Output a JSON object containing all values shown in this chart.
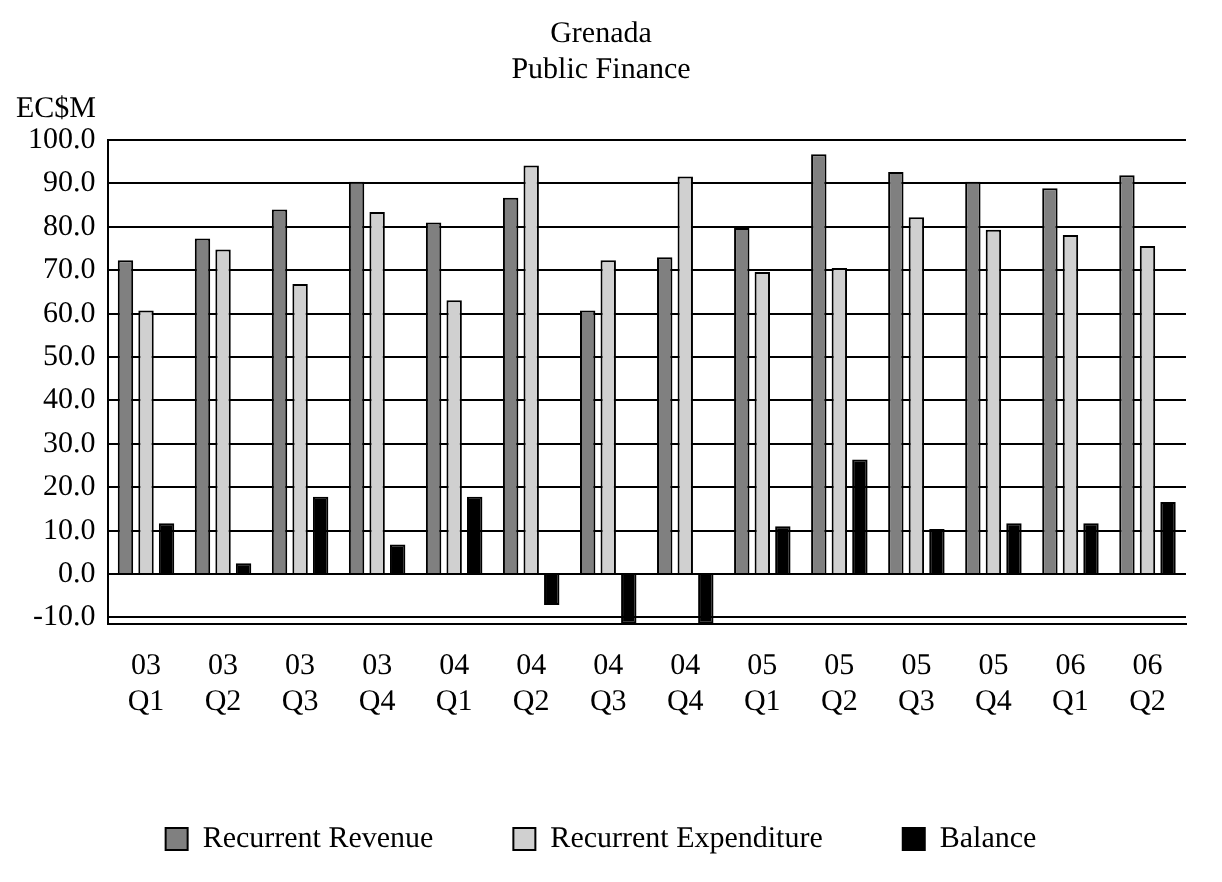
{
  "chart_data": {
    "type": "bar",
    "title": "Grenada",
    "subtitle": "Public Finance",
    "ylabel": "EC$M",
    "categories": [
      "03 Q1",
      "03 Q2",
      "03 Q3",
      "03 Q4",
      "04 Q1",
      "04 Q2",
      "04 Q3",
      "04 Q4",
      "05 Q1",
      "05 Q2",
      "05 Q3",
      "05 Q4",
      "06 Q1",
      "06 Q2"
    ],
    "series": [
      {
        "name": "Recurrent Revenue",
        "color": "#808080",
        "values": [
          72.3,
          77.3,
          84.0,
          90.4,
          81.0,
          86.7,
          60.7,
          73.0,
          79.7,
          96.7,
          92.6,
          90.4,
          88.9,
          91.9
        ]
      },
      {
        "name": "Recurrent Expenditure",
        "color": "#d0d0d0",
        "values": [
          60.7,
          74.8,
          66.8,
          83.4,
          63.1,
          94.1,
          72.3,
          91.6,
          69.6,
          70.5,
          82.2,
          79.3,
          78.1,
          75.6
        ]
      },
      {
        "name": "Balance",
        "color": "#000000",
        "values": [
          11.7,
          2.5,
          17.8,
          6.8,
          17.8,
          -7.1,
          -11.4,
          -11.4,
          11.0,
          26.4,
          10.4,
          11.7,
          11.7,
          16.6
        ]
      }
    ],
    "ylim": [
      -11.5,
      100
    ],
    "yticks": [
      {
        "value": -10,
        "label": "-10.0"
      },
      {
        "value": 0,
        "label": "0.0"
      },
      {
        "value": 10,
        "label": "10.0"
      },
      {
        "value": 20,
        "label": "20.0"
      },
      {
        "value": 30,
        "label": "30.0"
      },
      {
        "value": 40,
        "label": "40.0"
      },
      {
        "value": 50,
        "label": "50.0"
      },
      {
        "value": 60,
        "label": "60.0"
      },
      {
        "value": 70,
        "label": "70.0"
      },
      {
        "value": 80,
        "label": "80.0"
      },
      {
        "value": 90,
        "label": "90.0"
      },
      {
        "value": 100,
        "label": "100.0"
      }
    ],
    "grid": "y",
    "legend": "bottom"
  }
}
